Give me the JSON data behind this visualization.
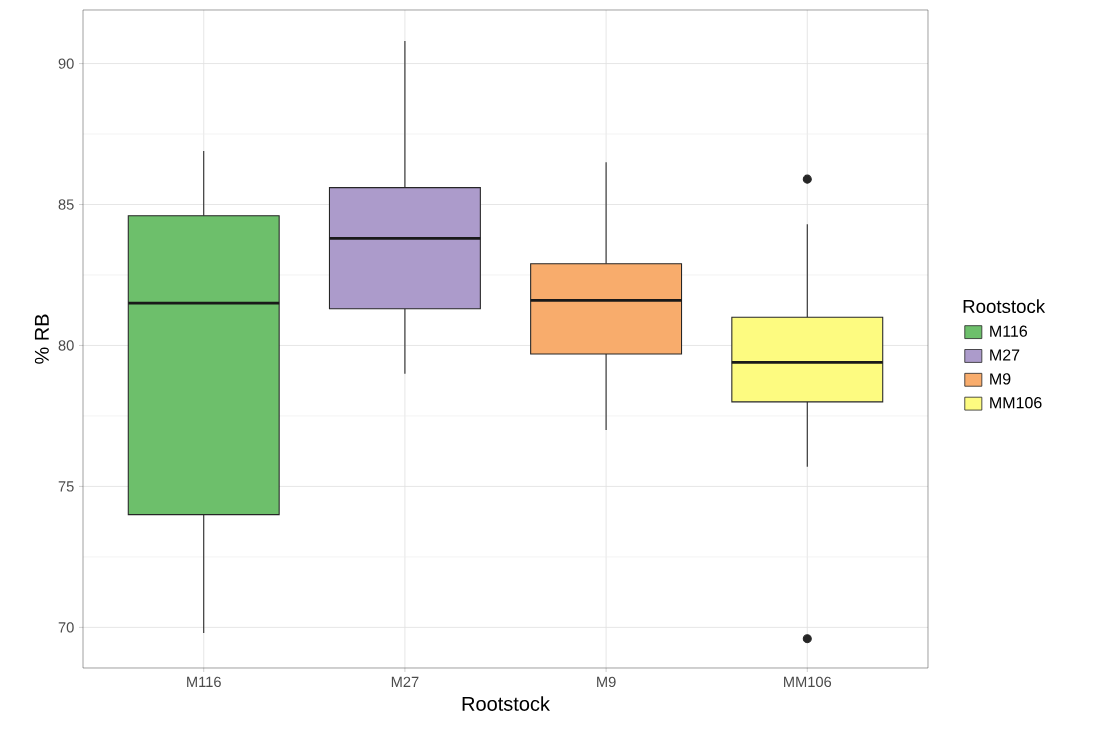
{
  "chart_data": {
    "type": "box",
    "xlabel": "Rootstock",
    "ylabel": "% RB",
    "legend_title": "Rootstock",
    "categories": [
      "M116",
      "M27",
      "M9",
      "MM106"
    ],
    "series": [
      {
        "name": "M116",
        "color": "#6dbf6b",
        "boxes": [
          {
            "low": 69.8,
            "q1": 74.0,
            "median": 81.5,
            "q3": 84.6,
            "high": 86.9
          },
          null,
          null,
          null
        ]
      },
      {
        "name": "M27",
        "color": "#ac9bcb",
        "boxes": [
          null,
          {
            "low": 79.0,
            "q1": 81.3,
            "median": 83.8,
            "q3": 85.6,
            "high": 90.8
          },
          null,
          null
        ]
      },
      {
        "name": "M9",
        "color": "#f8ac6c",
        "boxes": [
          null,
          null,
          {
            "low": 77.0,
            "q1": 79.7,
            "median": 81.6,
            "q3": 82.9,
            "high": 86.5
          },
          null
        ]
      },
      {
        "name": "MM106",
        "color": "#fdfb80",
        "boxes": [
          null,
          null,
          null,
          {
            "low": 75.7,
            "q1": 78.0,
            "median": 79.4,
            "q3": 81.0,
            "high": 84.3,
            "outliers": [
              85.9,
              69.6
            ]
          }
        ]
      }
    ],
    "ylim": [
      68.56,
      91.9
    ],
    "yticks": [
      70,
      75,
      80,
      85,
      90
    ],
    "grid": true,
    "legend": "right"
  }
}
